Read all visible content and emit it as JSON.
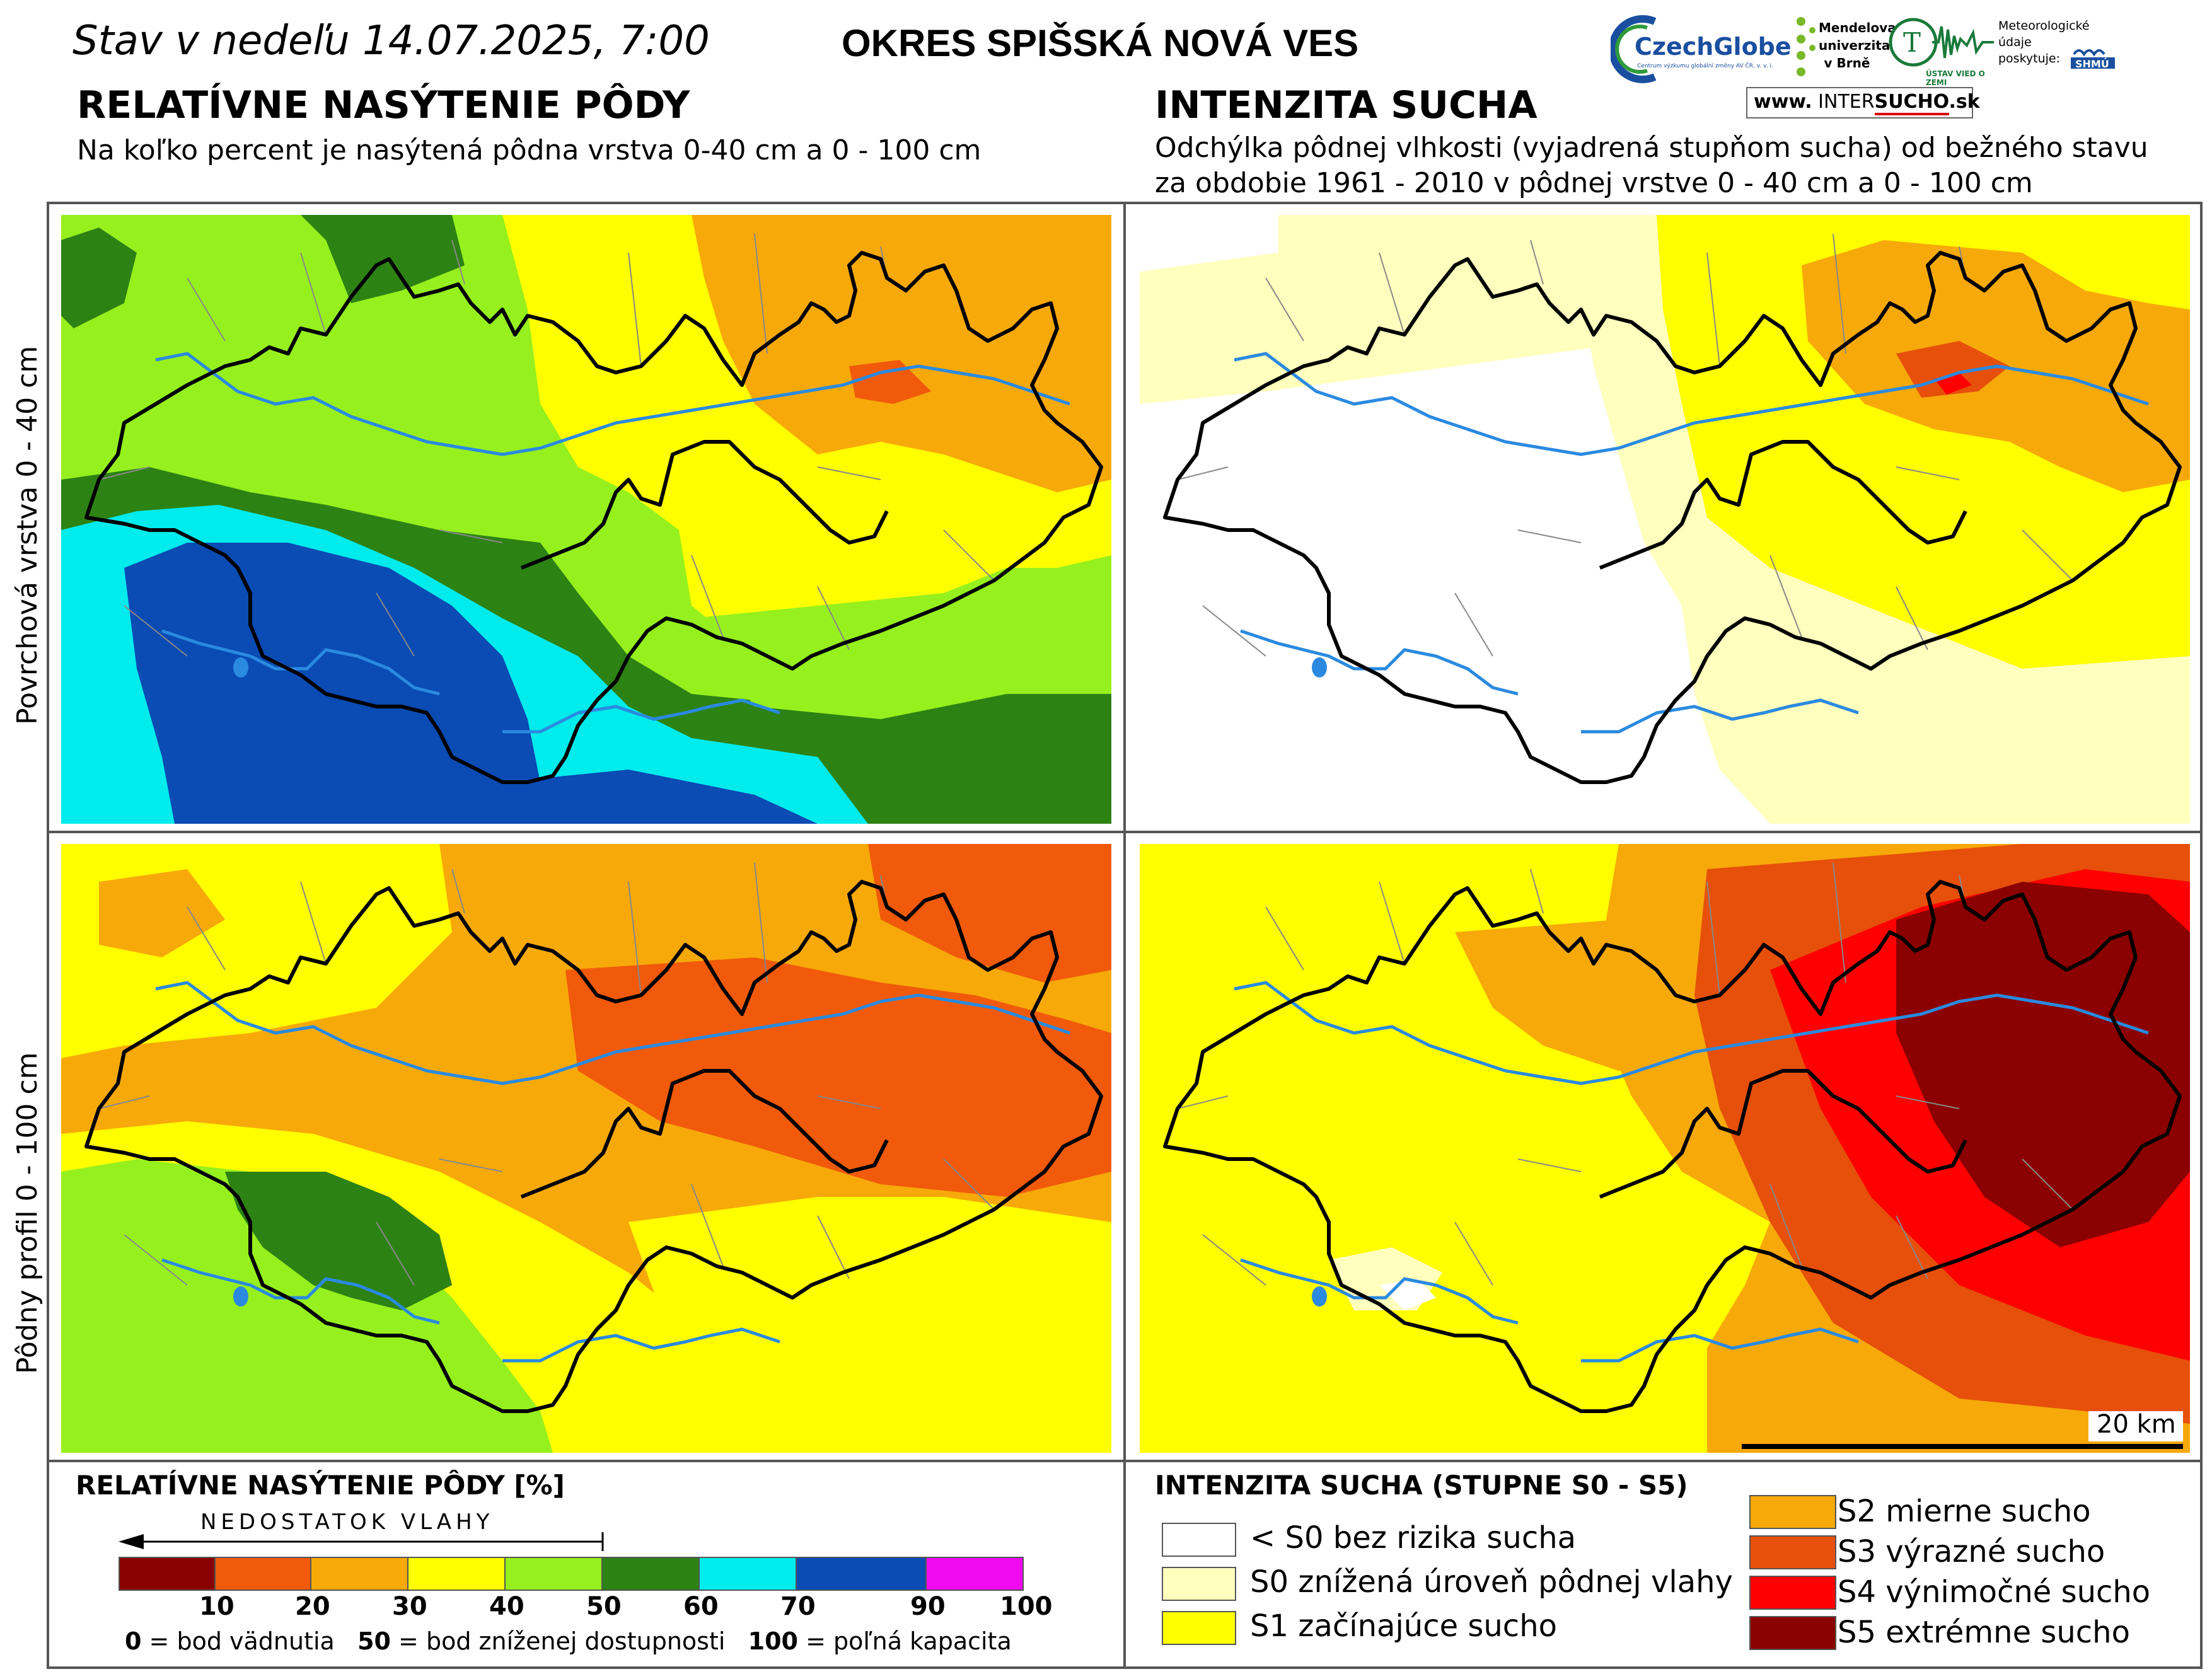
{
  "header": {
    "date_label": "Stav v nedeľu 14.07.2025, 7:00",
    "district": "OKRES  SPIŠSKÁ NOVÁ VES"
  },
  "logos": {
    "czechglobe": "CzechGlobe",
    "czechglobe_sub": "Centrum výzkumu globální změny AV ČR, v. v. i.",
    "mendelu": "Mendelova univerzita v Brně",
    "uvzz": "ÚSTAV VIED O ZEMI",
    "meteo_note": "Meteorologické údaje poskytuje:",
    "shmu": "SHMÚ",
    "intersucho_www": "www.",
    "intersucho_a": "INTER",
    "intersucho_b": "SUCHO",
    "intersucho_sk": ".sk"
  },
  "left_section": {
    "title": "RELATÍVNE NASÝTENIE PÔDY",
    "subtitle": "Na koľko percent je nasýtená pôdna vrstva 0-40 cm a 0 - 100 cm"
  },
  "right_section": {
    "title": "INTENZITA SUCHA",
    "subtitle_line1": "Odchýlka pôdnej vlhkosti (vyjadrená stupňom sucha) od bežného stavu",
    "subtitle_line2": "za obdobie 1961 - 2010 v pôdnej vrstve 0 - 40 cm a 0 - 100 cm"
  },
  "row_labels": {
    "top": "Povrchová vrstva 0 - 40 cm",
    "bottom": "Pôdny profil 0 - 100 cm"
  },
  "scale_bar": {
    "label": "20 km"
  },
  "saturation_legend": {
    "title": "RELATÍVNE NASÝTENIE PÔDY [%]",
    "arrow_label": "NEDOSTATOK VLAHY",
    "bins": [
      {
        "color": "#8b0000"
      },
      {
        "color": "#f05a0a"
      },
      {
        "color": "#f7a90a"
      },
      {
        "color": "#ffff00"
      },
      {
        "color": "#96f01e"
      },
      {
        "color": "#2d8214"
      },
      {
        "color": "#00ebeb"
      },
      {
        "color": "#0a4bb4"
      },
      {
        "color": "#f00af0"
      }
    ],
    "ticks": [
      "10",
      "20",
      "30",
      "40",
      "50",
      "60",
      "70",
      "90",
      "100"
    ],
    "note_0_val": "0",
    "note_0_txt": " = bod vädnutia",
    "note_50_val": "50",
    "note_50_txt": " = bod zníženej dostupnosti",
    "note_100_val": "100",
    "note_100_txt": " = poľná kapacita"
  },
  "drought_legend": {
    "title": "INTENZITA SUCHA (STUPNE S0 - S5)",
    "items": [
      {
        "color": "#ffffff",
        "label": "< S0 bez rizika sucha"
      },
      {
        "color": "#ffffbe",
        "label": "S0 znížená úroveň pôdnej vlahy"
      },
      {
        "color": "#ffff00",
        "label": "S1 začínajúce sucho"
      },
      {
        "color": "#f7a90a",
        "label": "S2 mierne sucho"
      },
      {
        "color": "#e6500a",
        "label": "S3 výrazné sucho"
      },
      {
        "color": "#ff0000",
        "label": "S4 výnimočné sucho"
      },
      {
        "color": "#8b0000",
        "label": "S5 extrémne sucho"
      }
    ]
  }
}
